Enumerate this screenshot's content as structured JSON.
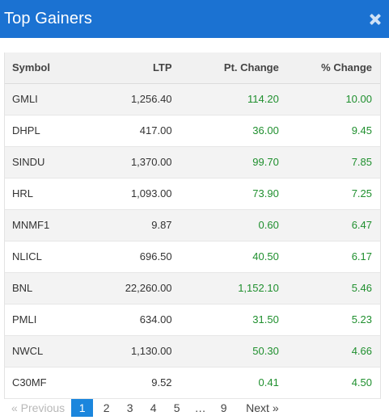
{
  "header": {
    "title": "Top Gainers",
    "close_icon": "close-icon"
  },
  "table": {
    "columns": [
      "Symbol",
      "LTP",
      "Pt. Change",
      "% Change"
    ],
    "rows": [
      [
        "GMLI",
        "1,256.40",
        "114.20",
        "10.00"
      ],
      [
        "DHPL",
        "417.00",
        "36.00",
        "9.45"
      ],
      [
        "SINDU",
        "1,370.00",
        "99.70",
        "7.85"
      ],
      [
        "HRL",
        "1,093.00",
        "73.90",
        "7.25"
      ],
      [
        "MNMF1",
        "9.87",
        "0.60",
        "6.47"
      ],
      [
        "NLICL",
        "696.50",
        "40.50",
        "6.17"
      ],
      [
        "BNL",
        "22,260.00",
        "1,152.10",
        "5.46"
      ],
      [
        "PMLI",
        "634.00",
        "31.50",
        "5.23"
      ],
      [
        "NWCL",
        "1,130.00",
        "50.30",
        "4.66"
      ],
      [
        "C30MF",
        "9.52",
        "0.41",
        "4.50"
      ]
    ]
  },
  "pagination": {
    "prev": "« Previous",
    "pages": [
      "1",
      "2",
      "3",
      "4",
      "5"
    ],
    "ellipsis": "…",
    "last": "9",
    "next": "Next »",
    "active": "1"
  },
  "colors": {
    "header": "#1b72d2",
    "positive": "#1f8f2e",
    "active_page": "#1b86dd"
  }
}
